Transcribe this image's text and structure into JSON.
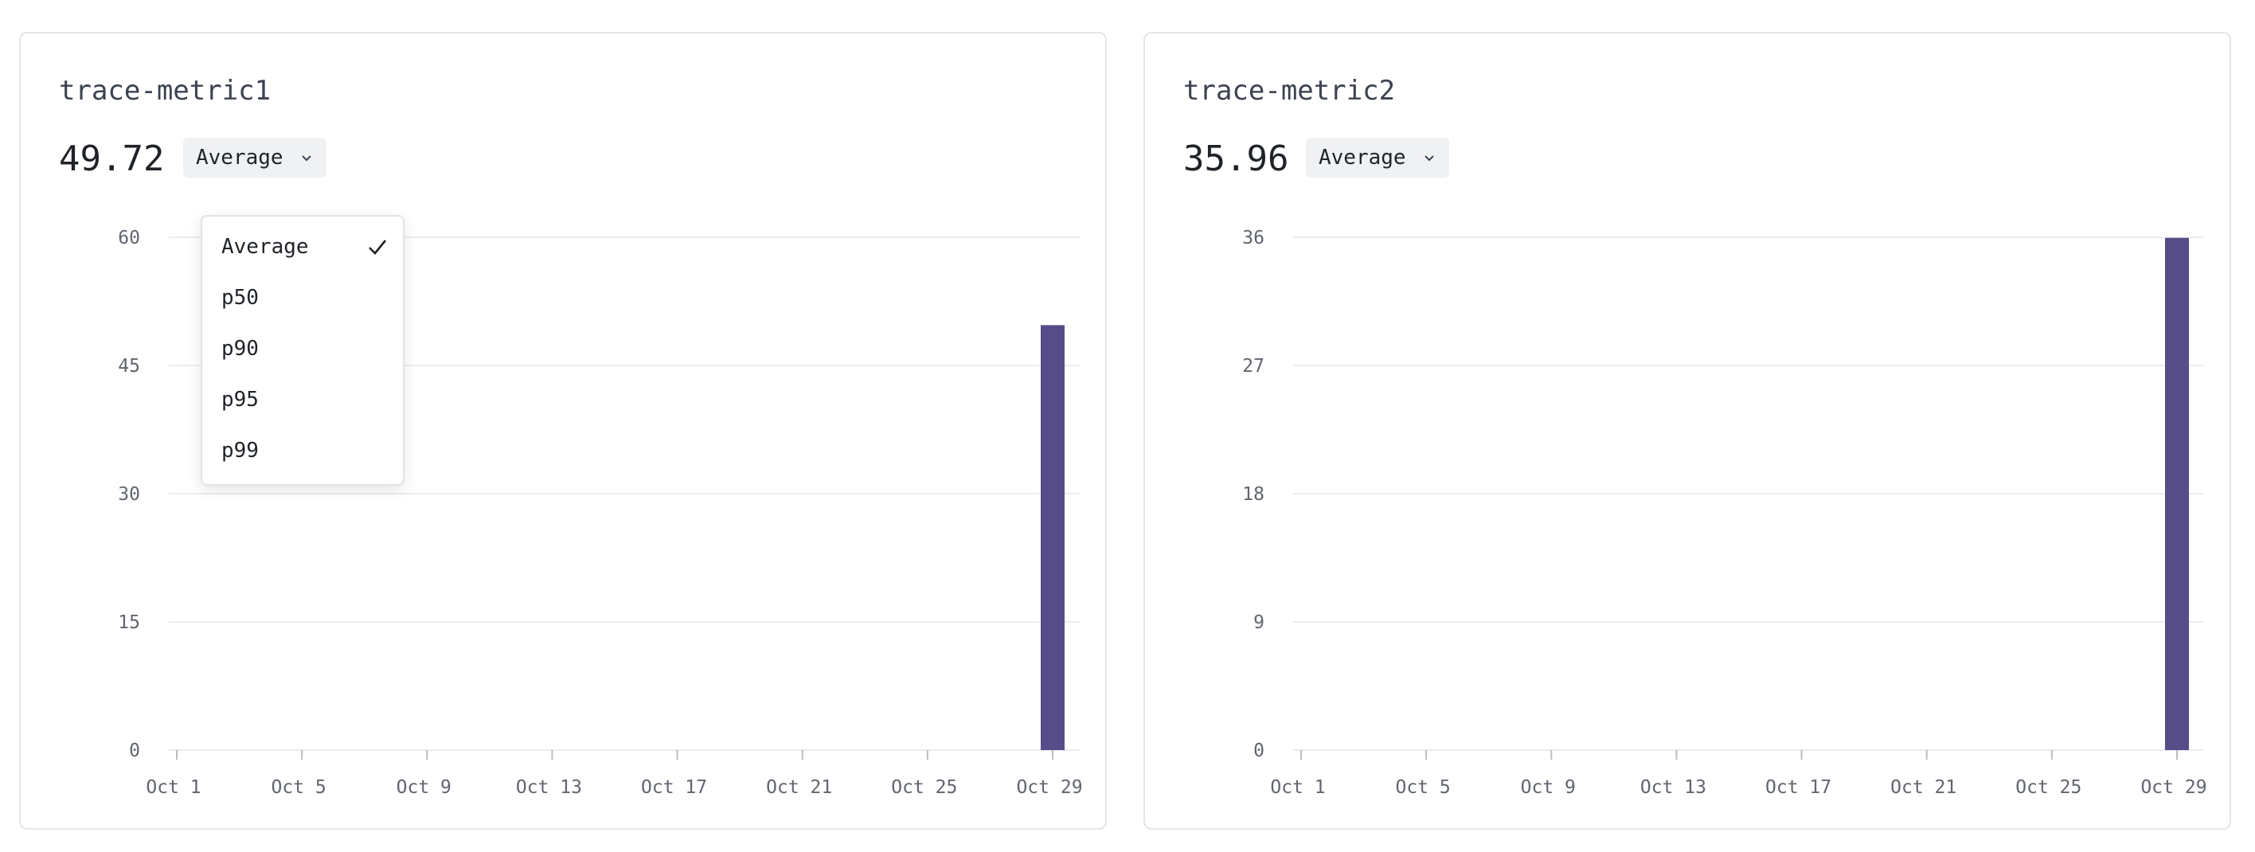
{
  "cards": [
    {
      "title": "trace-metric1",
      "value": "49.72",
      "aggregation": "Average"
    },
    {
      "title": "trace-metric2",
      "value": "35.96",
      "aggregation": "Average"
    }
  ],
  "dropdown": {
    "selected": "Average",
    "options": [
      "Average",
      "p50",
      "p90",
      "p95",
      "p99"
    ]
  },
  "colors": {
    "bar": "#564c87",
    "grid": "#ebedf0",
    "axis": "#b9bcc2"
  },
  "icons": {
    "chevron": "chevron-down-icon",
    "check": "check-icon"
  },
  "chart_data": [
    {
      "type": "bar",
      "title": "trace-metric1",
      "x_tick_labels": [
        "Oct 1",
        "Oct 5",
        "Oct 9",
        "Oct 13",
        "Oct 17",
        "Oct 21",
        "Oct 25",
        "Oct 29"
      ],
      "x": [
        "Oct 29"
      ],
      "values": [
        49.72
      ],
      "y_ticks": [
        0,
        15,
        30,
        45,
        60
      ],
      "ylim": [
        0,
        60
      ],
      "grid": true
    },
    {
      "type": "bar",
      "title": "trace-metric2",
      "x_tick_labels": [
        "Oct 1",
        "Oct 5",
        "Oct 9",
        "Oct 13",
        "Oct 17",
        "Oct 21",
        "Oct 25",
        "Oct 29"
      ],
      "x": [
        "Oct 29"
      ],
      "values": [
        35.96
      ],
      "y_ticks": [
        0,
        9,
        18,
        27,
        36
      ],
      "ylim": [
        0,
        36
      ],
      "grid": true
    }
  ]
}
